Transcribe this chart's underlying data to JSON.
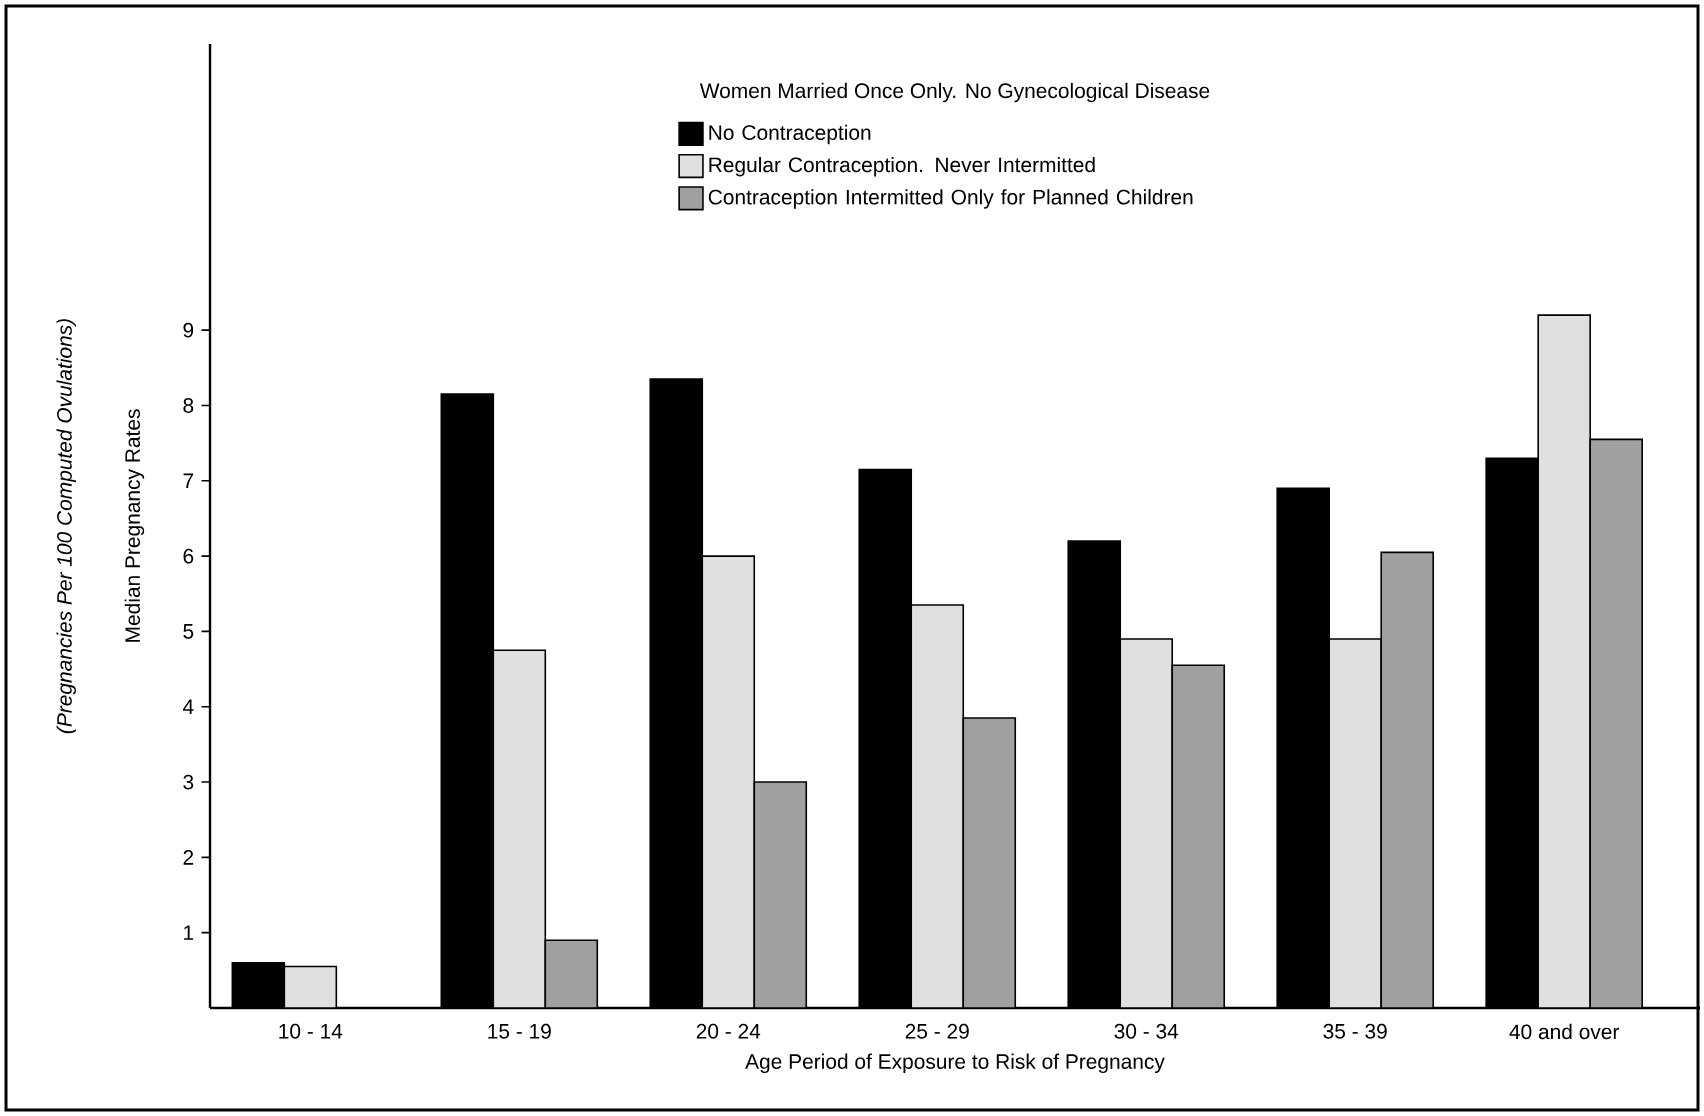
{
  "chart_data": {
    "type": "bar",
    "title": "Women Married Once Only. No Gynecological Disease",
    "xlabel": "Age Period of Exposure to Risk of Pregnancy",
    "ylabel": "Median Pregnancy Rates",
    "annotations": [
      "(Pregnancies Per 100 Computed Ovulations)"
    ],
    "categories": [
      "10 - 14",
      "15 - 19",
      "20 - 24",
      "25 - 29",
      "30 - 34",
      "35 - 39",
      "40 and over"
    ],
    "series": [
      {
        "name": "No Contraception",
        "color": "#000000",
        "values": [
          0.6,
          8.15,
          8.35,
          7.15,
          6.2,
          6.9,
          7.3
        ]
      },
      {
        "name": "Regular Contraception. Never Intermitted",
        "color": "#e0e0e0",
        "values": [
          0.55,
          4.75,
          6.0,
          5.35,
          4.9,
          4.9,
          9.2
        ]
      },
      {
        "name": "Contraception Intermitted Only for Planned Children",
        "color": "#a0a0a0",
        "values": [
          null,
          0.9,
          3.0,
          3.85,
          4.55,
          6.05,
          7.55
        ]
      }
    ],
    "ylim": [
      0,
      12.8
    ],
    "yticks": [
      1,
      2,
      3,
      4,
      5,
      6,
      7,
      8,
      9
    ],
    "grid": false,
    "legend": "top"
  }
}
